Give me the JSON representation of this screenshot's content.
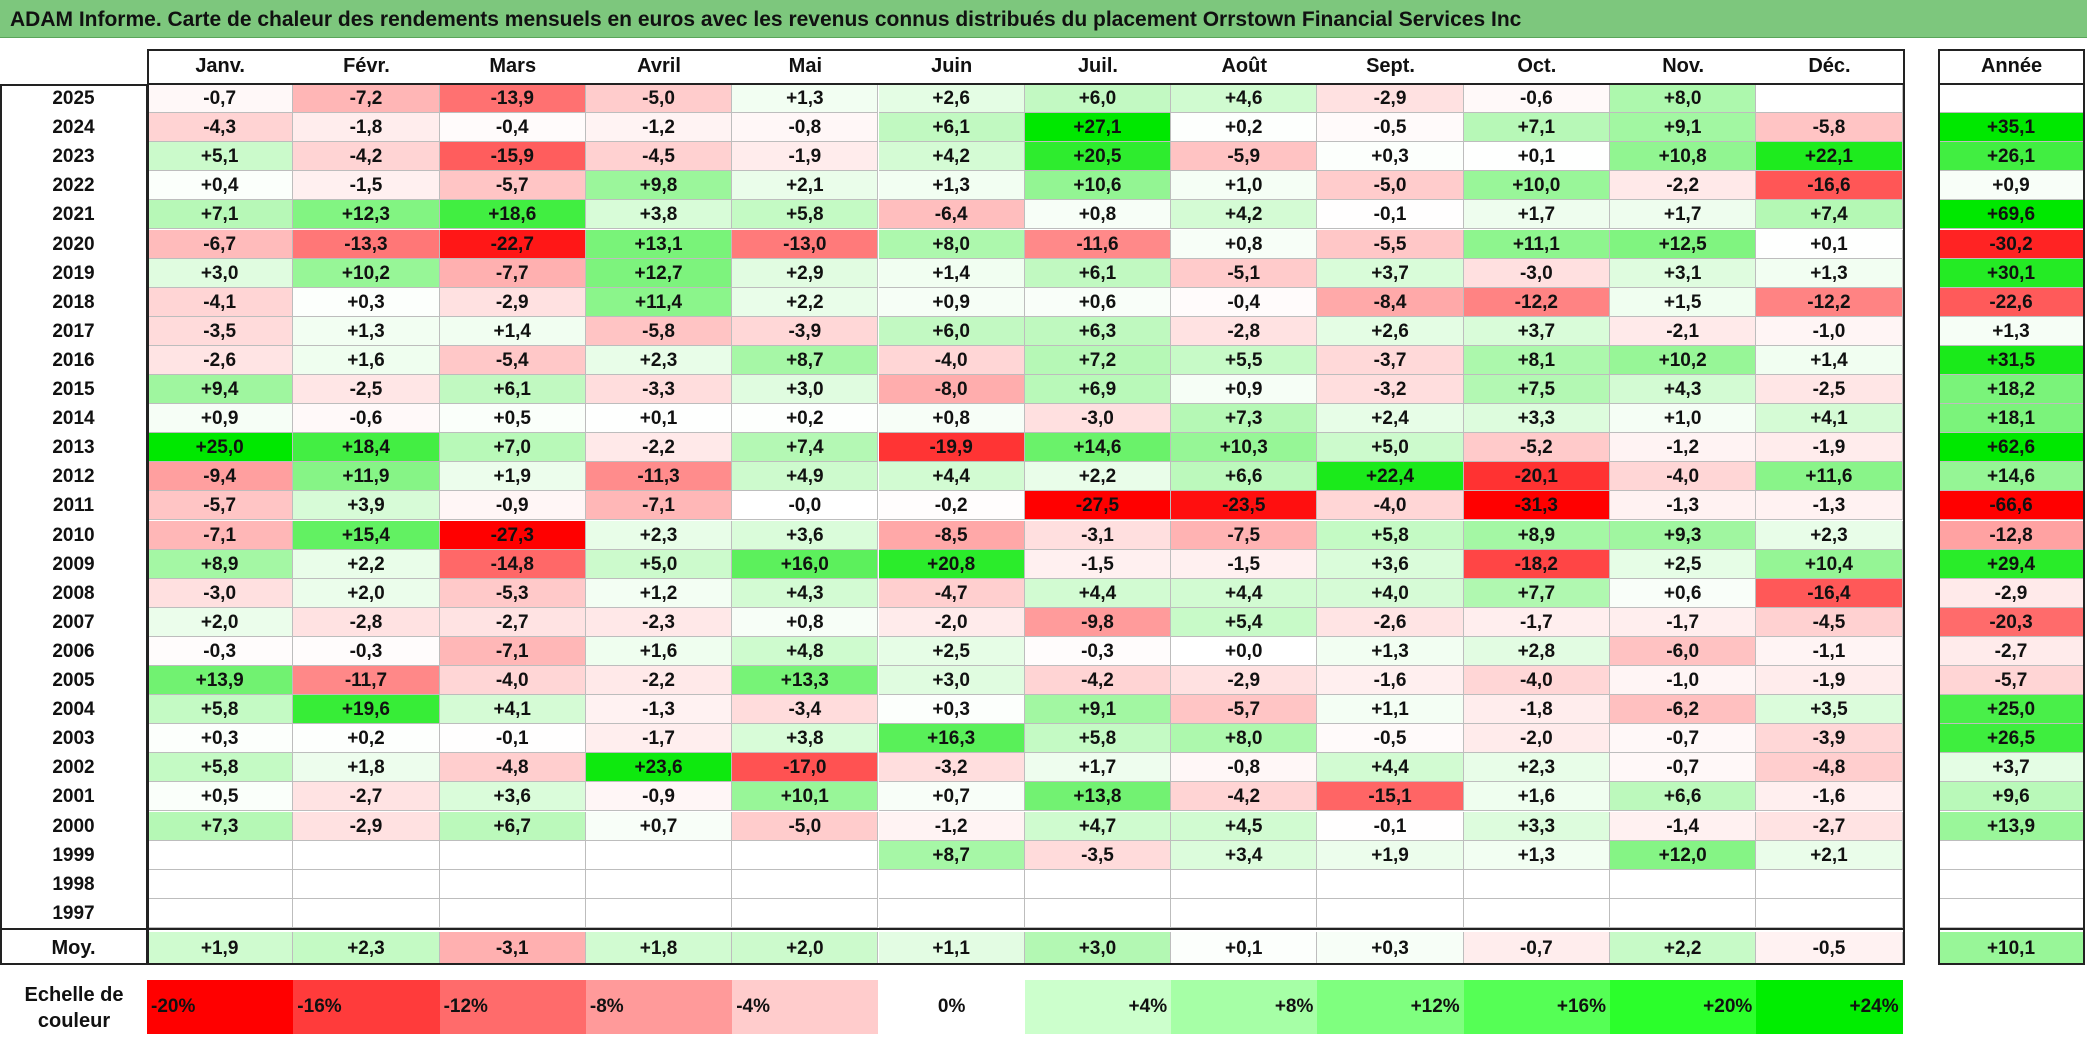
{
  "title": "ADAM Informe. Carte de chaleur des rendements mensuels en euros avec les revenus connus distribués du placement Orrstown Financial Services Inc",
  "chart_data": {
    "type": "heatmap",
    "months": [
      "Janv.",
      "Févr.",
      "Mars",
      "Avril",
      "Mai",
      "Juin",
      "Juil.",
      "Août",
      "Sept.",
      "Oct.",
      "Nov.",
      "Déc."
    ],
    "year_header": "Année",
    "avg_label": "Moy.",
    "rows": [
      {
        "year": "2025",
        "values": [
          "-0,7",
          "-7,2",
          "-13,9",
          "-5,0",
          "+1,3",
          "+2,6",
          "+6,0",
          "+4,6",
          "-2,9",
          "-0,6",
          "+8,0",
          ""
        ],
        "annual": ""
      },
      {
        "year": "2024",
        "values": [
          "-4,3",
          "-1,8",
          "-0,4",
          "-1,2",
          "-0,8",
          "+6,1",
          "+27,1",
          "+0,2",
          "-0,5",
          "+7,1",
          "+9,1",
          "-5,8"
        ],
        "annual": "+35,1"
      },
      {
        "year": "2023",
        "values": [
          "+5,1",
          "-4,2",
          "-15,9",
          "-4,5",
          "-1,9",
          "+4,2",
          "+20,5",
          "-5,9",
          "+0,3",
          "+0,1",
          "+10,8",
          "+22,1"
        ],
        "annual": "+26,1"
      },
      {
        "year": "2022",
        "values": [
          "+0,4",
          "-1,5",
          "-5,7",
          "+9,8",
          "+2,1",
          "+1,3",
          "+10,6",
          "+1,0",
          "-5,0",
          "+10,0",
          "-2,2",
          "-16,6"
        ],
        "annual": "+0,9"
      },
      {
        "year": "2021",
        "values": [
          "+7,1",
          "+12,3",
          "+18,6",
          "+3,8",
          "+5,8",
          "-6,4",
          "+0,8",
          "+4,2",
          "-0,1",
          "+1,7",
          "+1,7",
          "+7,4"
        ],
        "annual": "+69,6"
      },
      {
        "year": "2020",
        "values": [
          "-6,7",
          "-13,3",
          "-22,7",
          "+13,1",
          "-13,0",
          "+8,0",
          "-11,6",
          "+0,8",
          "-5,5",
          "+11,1",
          "+12,5",
          "+0,1"
        ],
        "annual": "-30,2"
      },
      {
        "year": "2019",
        "values": [
          "+3,0",
          "+10,2",
          "-7,7",
          "+12,7",
          "+2,9",
          "+1,4",
          "+6,1",
          "-5,1",
          "+3,7",
          "-3,0",
          "+3,1",
          "+1,3"
        ],
        "annual": "+30,1"
      },
      {
        "year": "2018",
        "values": [
          "-4,1",
          "+0,3",
          "-2,9",
          "+11,4",
          "+2,2",
          "+0,9",
          "+0,6",
          "-0,4",
          "-8,4",
          "-12,2",
          "+1,5",
          "-12,2"
        ],
        "annual": "-22,6"
      },
      {
        "year": "2017",
        "values": [
          "-3,5",
          "+1,3",
          "+1,4",
          "-5,8",
          "-3,9",
          "+6,0",
          "+6,3",
          "-2,8",
          "+2,6",
          "+3,7",
          "-2,1",
          "-1,0"
        ],
        "annual": "+1,3"
      },
      {
        "year": "2016",
        "values": [
          "-2,6",
          "+1,6",
          "-5,4",
          "+2,3",
          "+8,7",
          "-4,0",
          "+7,2",
          "+5,5",
          "-3,7",
          "+8,1",
          "+10,2",
          "+1,4"
        ],
        "annual": "+31,5"
      },
      {
        "year": "2015",
        "values": [
          "+9,4",
          "-2,5",
          "+6,1",
          "-3,3",
          "+3,0",
          "-8,0",
          "+6,9",
          "+0,9",
          "-3,2",
          "+7,5",
          "+4,3",
          "-2,5"
        ],
        "annual": "+18,2"
      },
      {
        "year": "2014",
        "values": [
          "+0,9",
          "-0,6",
          "+0,5",
          "+0,1",
          "+0,2",
          "+0,8",
          "-3,0",
          "+7,3",
          "+2,4",
          "+3,3",
          "+1,0",
          "+4,1"
        ],
        "annual": "+18,1"
      },
      {
        "year": "2013",
        "values": [
          "+25,0",
          "+18,4",
          "+7,0",
          "-2,2",
          "+7,4",
          "-19,9",
          "+14,6",
          "+10,3",
          "+5,0",
          "-5,2",
          "-1,2",
          "-1,9"
        ],
        "annual": "+62,6"
      },
      {
        "year": "2012",
        "values": [
          "-9,4",
          "+11,9",
          "+1,9",
          "-11,3",
          "+4,9",
          "+4,4",
          "+2,2",
          "+6,6",
          "+22,4",
          "-20,1",
          "-4,0",
          "+11,6"
        ],
        "annual": "+14,6"
      },
      {
        "year": "2011",
        "values": [
          "-5,7",
          "+3,9",
          "-0,9",
          "-7,1",
          "-0,0",
          "-0,2",
          "-27,5",
          "-23,5",
          "-4,0",
          "-31,3",
          "-1,3",
          "-1,3"
        ],
        "annual": "-66,6"
      },
      {
        "year": "2010",
        "values": [
          "-7,1",
          "+15,4",
          "-27,3",
          "+2,3",
          "+3,6",
          "-8,5",
          "-3,1",
          "-7,5",
          "+5,8",
          "+8,9",
          "+9,3",
          "+2,3"
        ],
        "annual": "-12,8"
      },
      {
        "year": "2009",
        "values": [
          "+8,9",
          "+2,2",
          "-14,8",
          "+5,0",
          "+16,0",
          "+20,8",
          "-1,5",
          "-1,5",
          "+3,6",
          "-18,2",
          "+2,5",
          "+10,4"
        ],
        "annual": "+29,4"
      },
      {
        "year": "2008",
        "values": [
          "-3,0",
          "+2,0",
          "-5,3",
          "+1,2",
          "+4,3",
          "-4,7",
          "+4,4",
          "+4,4",
          "+4,0",
          "+7,7",
          "+0,6",
          "-16,4"
        ],
        "annual": "-2,9"
      },
      {
        "year": "2007",
        "values": [
          "+2,0",
          "-2,8",
          "-2,7",
          "-2,3",
          "+0,8",
          "-2,0",
          "-9,8",
          "+5,4",
          "-2,6",
          "-1,7",
          "-1,7",
          "-4,5"
        ],
        "annual": "-20,3"
      },
      {
        "year": "2006",
        "values": [
          "-0,3",
          "-0,3",
          "-7,1",
          "+1,6",
          "+4,8",
          "+2,5",
          "-0,3",
          "+0,0",
          "+1,3",
          "+2,8",
          "-6,0",
          "-1,1"
        ],
        "annual": "-2,7"
      },
      {
        "year": "2005",
        "values": [
          "+13,9",
          "-11,7",
          "-4,0",
          "-2,2",
          "+13,3",
          "+3,0",
          "-4,2",
          "-2,9",
          "-1,6",
          "-4,0",
          "-1,0",
          "-1,9"
        ],
        "annual": "-5,7"
      },
      {
        "year": "2004",
        "values": [
          "+5,8",
          "+19,6",
          "+4,1",
          "-1,3",
          "-3,4",
          "+0,3",
          "+9,1",
          "-5,7",
          "+1,1",
          "-1,8",
          "-6,2",
          "+3,5"
        ],
        "annual": "+25,0"
      },
      {
        "year": "2003",
        "values": [
          "+0,3",
          "+0,2",
          "-0,1",
          "-1,7",
          "+3,8",
          "+16,3",
          "+5,8",
          "+8,0",
          "-0,5",
          "-2,0",
          "-0,7",
          "-3,9"
        ],
        "annual": "+26,5"
      },
      {
        "year": "2002",
        "values": [
          "+5,8",
          "+1,8",
          "-4,8",
          "+23,6",
          "-17,0",
          "-3,2",
          "+1,7",
          "-0,8",
          "+4,4",
          "+2,3",
          "-0,7",
          "-4,8"
        ],
        "annual": "+3,7"
      },
      {
        "year": "2001",
        "values": [
          "+0,5",
          "-2,7",
          "+3,6",
          "-0,9",
          "+10,1",
          "+0,7",
          "+13,8",
          "-4,2",
          "-15,1",
          "+1,6",
          "+6,6",
          "-1,6"
        ],
        "annual": "+9,6"
      },
      {
        "year": "2000",
        "values": [
          "+7,3",
          "-2,9",
          "+6,7",
          "+0,7",
          "-5,0",
          "-1,2",
          "+4,7",
          "+4,5",
          "-0,1",
          "+3,3",
          "-1,4",
          "-2,7"
        ],
        "annual": "+13,9"
      },
      {
        "year": "1999",
        "values": [
          "",
          "",
          "",
          "",
          "",
          "+8,7",
          "-3,5",
          "+3,4",
          "+1,9",
          "+1,3",
          "+12,0",
          "+2,1"
        ],
        "annual": ""
      },
      {
        "year": "1998",
        "values": [
          "",
          "",
          "",
          "",
          "",
          "",
          "",
          "",
          "",
          "",
          "",
          ""
        ],
        "annual": ""
      },
      {
        "year": "1997",
        "values": [
          "",
          "",
          "",
          "",
          "",
          "",
          "",
          "",
          "",
          "",
          "",
          ""
        ],
        "annual": ""
      }
    ],
    "averages": [
      "+1,9",
      "+2,3",
      "-3,1",
      "+1,8",
      "+2,0",
      "+1,1",
      "+3,0",
      "+0,1",
      "+0,3",
      "-0,7",
      "+2,2",
      "-0,5"
    ],
    "annual_average": "+10,1",
    "legend": {
      "label": "Echelle de couleur",
      "labels": [
        "-20%",
        "-16%",
        "-12%",
        "-8%",
        "-4%",
        "0%",
        "+4%",
        "+8%",
        "+12%",
        "+16%",
        "+20%",
        "+24%"
      ],
      "colors": [
        "#ff0000",
        "#ff3b3b",
        "#ff6b6b",
        "#ff9a9a",
        "#ffcccc",
        "#ffffff",
        "#ccffcc",
        "#a6ffa6",
        "#7fff7f",
        "#55ff55",
        "#2bff2b",
        "#00ee00"
      ]
    }
  }
}
